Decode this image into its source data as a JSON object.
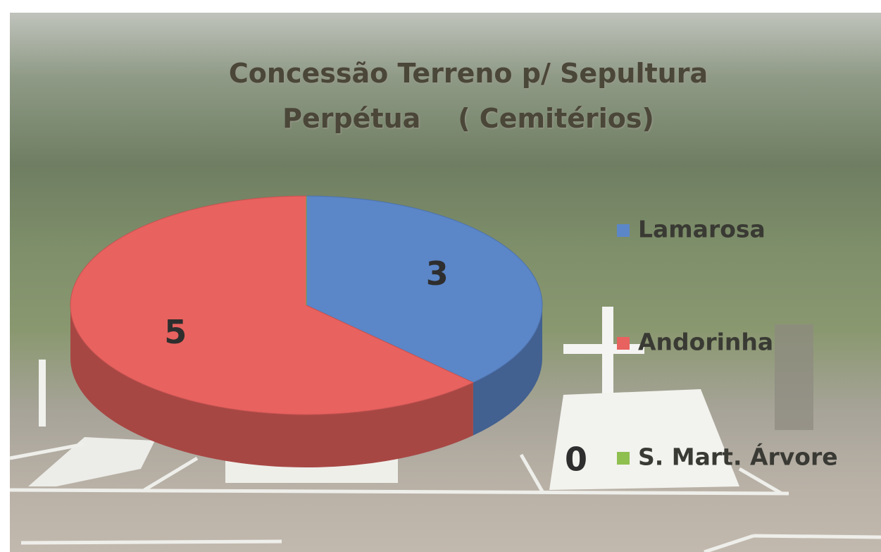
{
  "chart_data": {
    "type": "pie",
    "title": "Concessão Terreno p/ Sepultura Perpétua    ( Cemitérios)",
    "categories": [
      "Lamarosa",
      "Andorinha",
      "S. Mart. Árvore"
    ],
    "values": [
      3,
      5,
      0
    ],
    "colors": [
      "#5b86c8",
      "#e8625f",
      "#8fbf4f"
    ],
    "legend": "right"
  }
}
